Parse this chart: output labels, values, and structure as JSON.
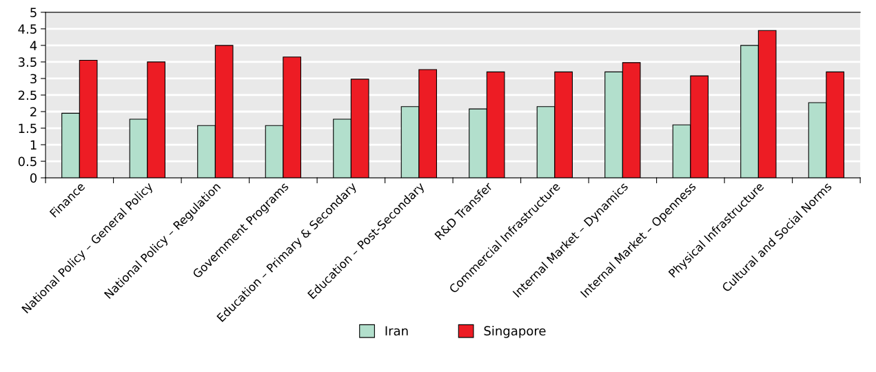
{
  "chart_data": {
    "type": "bar",
    "categories": [
      "Finance",
      "National Policy – General Policy",
      "National Policy – Regulation",
      "Government Programs",
      "Education – Primary & Secondary",
      "Education – Post-Secondary",
      "R&D Transfer",
      "Commercial Infrastructure",
      "Internal Market – Dynamics",
      "Internal Market – Openness",
      "Physical Infrastructure",
      "Cultural and Social Norms"
    ],
    "series": [
      {
        "name": "Iran",
        "color": "#b2dfcc",
        "values": [
          1.95,
          1.77,
          1.58,
          1.58,
          1.77,
          2.15,
          2.08,
          2.15,
          3.2,
          1.6,
          4.0,
          2.27
        ]
      },
      {
        "name": "Singapore",
        "color": "#ed1c24",
        "values": [
          3.55,
          3.5,
          4.0,
          3.65,
          2.98,
          3.27,
          3.2,
          3.2,
          3.48,
          3.08,
          4.45,
          3.2
        ]
      }
    ],
    "ylim": [
      0,
      5
    ],
    "yticks": [
      0,
      0.5,
      1,
      1.5,
      2,
      2.5,
      3,
      3.5,
      4,
      4.5,
      5
    ],
    "grid": "y",
    "legend": "bottom"
  }
}
